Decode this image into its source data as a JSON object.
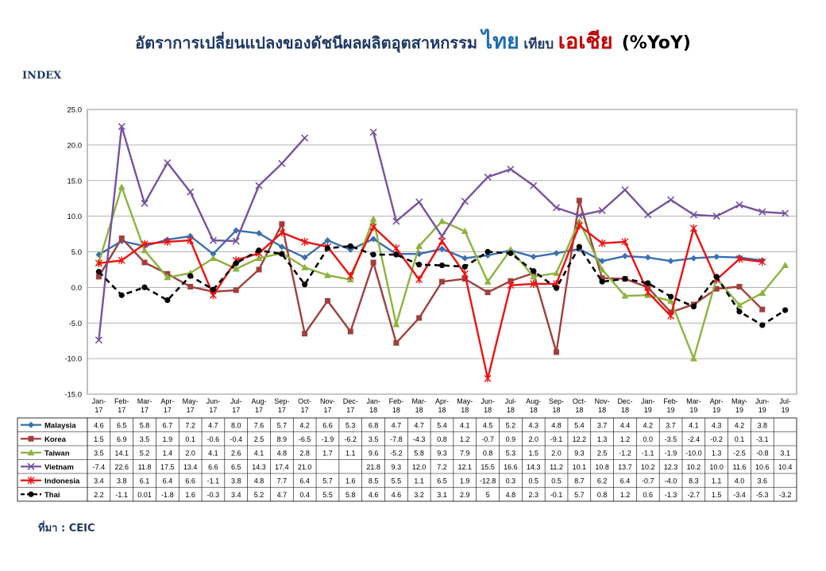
{
  "title": {
    "part1": "อัตราการเปลี่ยนแปลงของดัชนีผลผลิตอุตสาหกรรม",
    "part2": "ไทย",
    "part3": "เทียบ",
    "part4": "เอเชีย",
    "part5": "(%YoY)"
  },
  "index_label": "INDEX",
  "source": "ที่มา : CEIC",
  "colors": {
    "Malaysia": "#3a6fb0",
    "Korea": "#a0403c",
    "Taiwan": "#8db33f",
    "Vietnam": "#7653a0",
    "Indonesia": "#ee1111",
    "Thai": "#000000"
  },
  "chart_data": {
    "type": "line",
    "ylim": [
      -15,
      25
    ],
    "yticks": [
      "25.0",
      "20.0",
      "15.0",
      "10.0",
      "5.0",
      "0.0",
      "-5.0",
      "-10.0",
      "-15.0"
    ],
    "grid": true,
    "categories": [
      [
        "Jan-",
        "17"
      ],
      [
        "Feb-",
        "17"
      ],
      [
        "Mar-",
        "17"
      ],
      [
        "Apr-",
        "17"
      ],
      [
        "May-",
        "17"
      ],
      [
        "Jun-",
        "17"
      ],
      [
        "Jul-",
        "17"
      ],
      [
        "Aug-",
        "17"
      ],
      [
        "Sep-",
        "17"
      ],
      [
        "Oct-",
        "17"
      ],
      [
        "Nov-",
        "17"
      ],
      [
        "Dec-",
        "17"
      ],
      [
        "Jan-",
        "18"
      ],
      [
        "Feb-",
        "18"
      ],
      [
        "Mar-",
        "18"
      ],
      [
        "Apr-",
        "18"
      ],
      [
        "May-",
        "18"
      ],
      [
        "Jun-",
        "18"
      ],
      [
        "Jul-",
        "18"
      ],
      [
        "Aug-",
        "18"
      ],
      [
        "Sep-",
        "18"
      ],
      [
        "Oct-",
        "18"
      ],
      [
        "Nov-",
        "18"
      ],
      [
        "Dec-",
        "18"
      ],
      [
        "Jan-",
        "19"
      ],
      [
        "Feb-",
        "19"
      ],
      [
        "Mar-",
        "19"
      ],
      [
        "Apr-",
        "19"
      ],
      [
        "May-",
        "19"
      ],
      [
        "Jun-",
        "19"
      ],
      [
        "Jul-",
        "19"
      ]
    ],
    "series": [
      {
        "name": "Malaysia",
        "marker": "diamond",
        "dashed": false,
        "labels": [
          "4.6",
          "6.5",
          "5.8",
          "6.7",
          "7.2",
          "4.7",
          "8.0",
          "7.6",
          "5.7",
          "4.2",
          "6.6",
          "5.3",
          "6.8",
          "4.7",
          "4.7",
          "5.4",
          "4.1",
          "4.5",
          "5.2",
          "4.3",
          "4.8",
          "5.4",
          "3.7",
          "4.4",
          "4.2",
          "3.7",
          "4.1",
          "4.3",
          "4.2",
          "3.8",
          ""
        ],
        "values": [
          4.6,
          6.5,
          5.8,
          6.7,
          7.2,
          4.7,
          8.0,
          7.6,
          5.7,
          4.2,
          6.6,
          5.3,
          6.8,
          4.7,
          4.7,
          5.4,
          4.1,
          4.5,
          5.2,
          4.3,
          4.8,
          5.4,
          3.7,
          4.4,
          4.2,
          3.7,
          4.1,
          4.3,
          4.2,
          3.8,
          null
        ]
      },
      {
        "name": "Korea",
        "marker": "square",
        "dashed": false,
        "labels": [
          "1.5",
          "6.9",
          "3.5",
          "1.9",
          "0.1",
          "-0.6",
          "-0.4",
          "2.5",
          "8.9",
          "-6.5",
          "-1.9",
          "-6.2",
          "3.5",
          "-7.8",
          "-4.3",
          "0.8",
          "1.2",
          "-0.7",
          "0.9",
          "2.0",
          "-9.1",
          "12.2",
          "1.3",
          "1.2",
          "0.0",
          "-3.5",
          "-2.4",
          "-0.2",
          "0.1",
          "-3.1",
          ""
        ],
        "values": [
          1.5,
          6.9,
          3.5,
          1.9,
          0.1,
          -0.6,
          -0.4,
          2.5,
          8.9,
          -6.5,
          -1.9,
          -6.2,
          3.5,
          -7.8,
          -4.3,
          0.8,
          1.2,
          -0.7,
          0.9,
          2.0,
          -9.1,
          12.2,
          1.3,
          1.2,
          0.0,
          -3.5,
          -2.4,
          -0.2,
          0.1,
          -3.1,
          null
        ]
      },
      {
        "name": "Taiwan",
        "marker": "triangle",
        "dashed": false,
        "labels": [
          "3.5",
          "14.1",
          "5.2",
          "1.4",
          "2.0",
          "4.1",
          "2.6",
          "4.1",
          "4.8",
          "2.8",
          "1.7",
          "1.1",
          "9.6",
          "-5.2",
          "5.8",
          "9.3",
          "7.9",
          "0.8",
          "5.3",
          "1.5",
          "2.0",
          "9.3",
          "2.5",
          "-1.2",
          "-1.1",
          "-1.9",
          "-10.0",
          "1.3",
          "-2.5",
          "-0.8",
          "3.1"
        ],
        "values": [
          3.5,
          14.1,
          5.2,
          1.4,
          2.0,
          4.1,
          2.6,
          4.1,
          4.8,
          2.8,
          1.7,
          1.1,
          9.6,
          -5.2,
          5.8,
          9.3,
          7.9,
          0.8,
          5.3,
          1.5,
          2.0,
          9.3,
          2.5,
          -1.2,
          -1.1,
          -1.9,
          -10.0,
          1.3,
          -2.5,
          -0.8,
          3.1
        ]
      },
      {
        "name": "Vietnam",
        "marker": "x",
        "dashed": false,
        "labels": [
          "-7.4",
          "22.6",
          "11.8",
          "17.5",
          "13.4",
          "6.6",
          "6.5",
          "14.3",
          "17.4",
          "21.0",
          "",
          "",
          "21.8",
          "9.3",
          "12.0",
          "7.2",
          "12.1",
          "15.5",
          "16.6",
          "14.3",
          "11.2",
          "10.1",
          "10.8",
          "13.7",
          "10.2",
          "12.3",
          "10.2",
          "10.0",
          "11.6",
          "10.6",
          "10.4"
        ],
        "values": [
          -7.4,
          22.6,
          11.8,
          17.5,
          13.4,
          6.6,
          6.5,
          14.3,
          17.4,
          21.0,
          null,
          null,
          21.8,
          9.3,
          12.0,
          7.2,
          12.1,
          15.5,
          16.6,
          14.3,
          11.2,
          10.1,
          10.8,
          13.7,
          10.2,
          12.3,
          10.2,
          10.0,
          11.6,
          10.6,
          10.4
        ]
      },
      {
        "name": "Indonesia",
        "marker": "star",
        "dashed": false,
        "labels": [
          "3.4",
          "3.8",
          "6.1",
          "6.4",
          "6.6",
          "-1.1",
          "3.8",
          "4.8",
          "7.7",
          "6.4",
          "5.7",
          "1.6",
          "8.5",
          "5.5",
          "1.1",
          "6.5",
          "1.9",
          "-12.8",
          "0.3",
          "0.5",
          "0.5",
          "8.7",
          "6.2",
          "6.4",
          "-0.7",
          "-4.0",
          "8.3",
          "1.1",
          "4.0",
          "3.6",
          ""
        ],
        "values": [
          3.4,
          3.8,
          6.1,
          6.4,
          6.6,
          -1.1,
          3.8,
          4.8,
          7.7,
          6.4,
          5.7,
          1.6,
          8.5,
          5.5,
          1.1,
          6.5,
          1.9,
          -12.8,
          0.3,
          0.5,
          0.5,
          8.7,
          6.2,
          6.4,
          -0.7,
          -4.0,
          8.3,
          1.1,
          4.0,
          3.6,
          null
        ]
      },
      {
        "name": "Thai",
        "marker": "circle",
        "dashed": true,
        "labels": [
          "2.2",
          "-1.1",
          "0.01",
          "-1.8",
          "1.6",
          "-0.3",
          "3.4",
          "5.2",
          "4.7",
          "0.4",
          "5.5",
          "5.8",
          "4.6",
          "4.6",
          "3.2",
          "3.1",
          "2.9",
          "5",
          "4.8",
          "2.3",
          "-0.1",
          "5.7",
          "0.8",
          "1.2",
          "0.6",
          "-1.3",
          "-2.7",
          "1.5",
          "-3.4",
          "-5.3",
          "-3.2"
        ],
        "values": [
          2.2,
          -1.1,
          0.01,
          -1.8,
          1.6,
          -0.3,
          3.4,
          5.2,
          4.7,
          0.4,
          5.5,
          5.8,
          4.6,
          4.6,
          3.2,
          3.1,
          2.9,
          5,
          4.8,
          2.3,
          -0.1,
          5.7,
          0.8,
          1.2,
          0.6,
          -1.3,
          -2.7,
          1.5,
          -3.4,
          -5.3,
          -3.2
        ]
      }
    ]
  }
}
